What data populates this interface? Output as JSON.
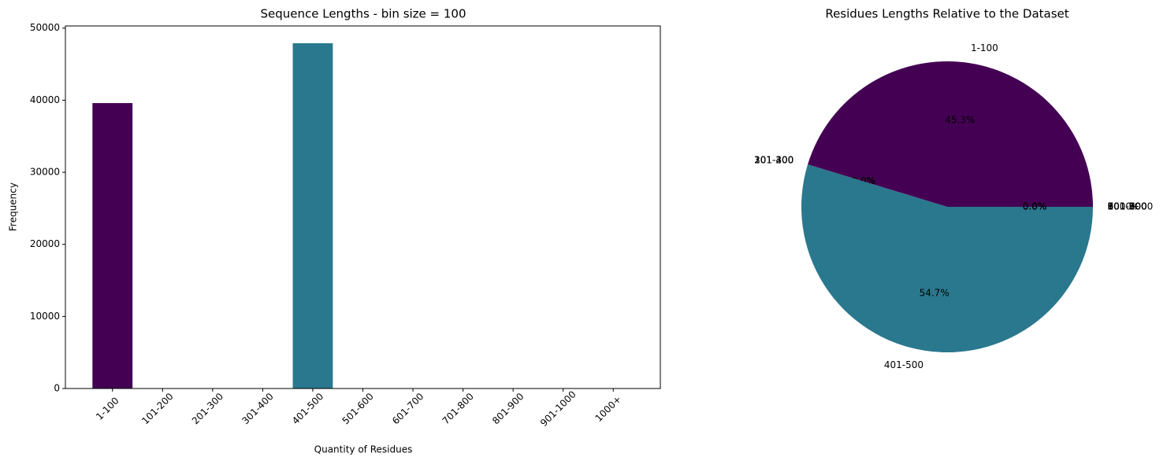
{
  "chart_data": [
    {
      "type": "bar",
      "title": "Sequence Lengths - bin size = 100",
      "x_label": "Quantity of Residues",
      "y_label": "Frequency",
      "categories": [
        "1-100",
        "101-200",
        "201-300",
        "301-400",
        "401-500",
        "501-600",
        "601-700",
        "701-800",
        "801-900",
        "901-1000",
        "1000+"
      ],
      "values": [
        39600,
        0,
        0,
        0,
        47900,
        0,
        0,
        0,
        0,
        0,
        0
      ],
      "colors": [
        "#440154",
        "#482475",
        "#414487",
        "#355f8d",
        "#2a788e",
        "#21918c",
        "#22a884",
        "#44bf70",
        "#7ad151",
        "#bddf26",
        "#fde725"
      ],
      "ylim": [
        0,
        50300
      ],
      "yticks": [
        0,
        10000,
        20000,
        30000,
        40000,
        50000
      ]
    },
    {
      "type": "pie",
      "title": "Residues Lengths Relative to the Dataset",
      "categories": [
        "1-100",
        "101-200",
        "201-300",
        "301-400",
        "401-500",
        "501-600",
        "601-700",
        "701-800",
        "801-900",
        "901-1000",
        "1000+"
      ],
      "values": [
        45.3,
        0,
        0,
        0,
        54.7,
        0,
        0,
        0,
        0,
        0,
        0
      ],
      "value_labels": [
        "45.3%",
        "0.0%",
        "0.0%",
        "0.0%",
        "54.7%",
        "0.0%",
        "0.0%",
        "0.0%",
        "0.0%",
        "0.0%",
        "0.0%"
      ],
      "colors": [
        "#440154",
        "#482475",
        "#414487",
        "#355f8d",
        "#2a788e",
        "#21918c",
        "#22a884",
        "#44bf70",
        "#7ad151",
        "#bddf26",
        "#fde725"
      ]
    }
  ]
}
